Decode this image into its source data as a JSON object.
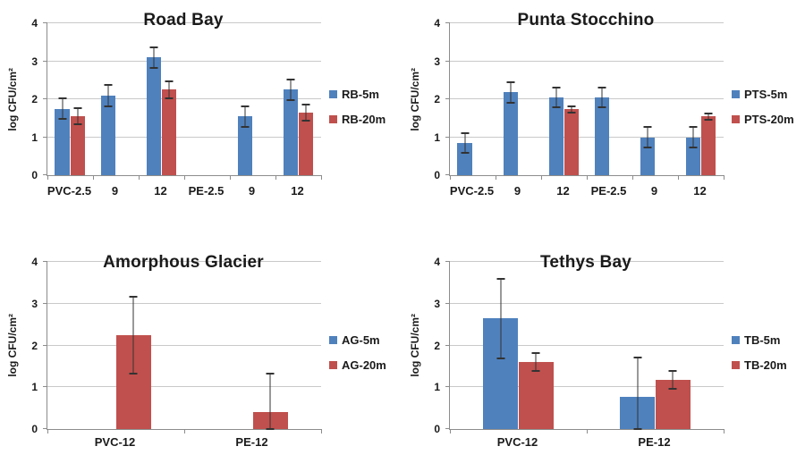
{
  "colors": {
    "series_5m_blue": "#4F81BD",
    "series_20m_red": "#C0504D",
    "gridline": "#C9C9C9",
    "axis": "#8C8C8C",
    "error_bar": "#333333",
    "text": "#1A1A1A",
    "background": "#FFFFFF"
  },
  "chart_data": [
    {
      "type": "bar",
      "title": "Road Bay",
      "ylabel": "log CFU/cm²",
      "xlabel": "",
      "ylim": [
        0,
        4
      ],
      "yticks": [
        0,
        1,
        2,
        3,
        4
      ],
      "grid": true,
      "legend_position": "right",
      "categories": [
        "PVC-2.5",
        "9",
        "12",
        "PE-2.5",
        "9",
        "12"
      ],
      "series": [
        {
          "name": "RB-5m",
          "color": "#4F81BD",
          "values": [
            1.75,
            2.1,
            3.1,
            null,
            1.55,
            2.25
          ],
          "errors": [
            0.27,
            0.28,
            0.27,
            null,
            0.27,
            0.27
          ]
        },
        {
          "name": "RB-20m",
          "color": "#C0504D",
          "values": [
            1.55,
            null,
            2.25,
            null,
            null,
            1.65
          ],
          "errors": [
            0.21,
            null,
            0.22,
            null,
            null,
            0.21
          ]
        }
      ]
    },
    {
      "type": "bar",
      "title": "Punta Stocchino",
      "ylabel": "log CFU/cm²",
      "xlabel": "",
      "ylim": [
        0,
        4
      ],
      "yticks": [
        0,
        1,
        2,
        3,
        4
      ],
      "grid": true,
      "legend_position": "right",
      "categories": [
        "PVC-2.5",
        "9",
        "12",
        "PE-2.5",
        "9",
        "12"
      ],
      "series": [
        {
          "name": "PTS-5m",
          "color": "#4F81BD",
          "values": [
            0.85,
            2.18,
            2.05,
            2.05,
            1.0,
            1.0
          ],
          "errors": [
            0.26,
            0.27,
            0.26,
            0.26,
            0.26,
            0.27
          ]
        },
        {
          "name": "PTS-20m",
          "color": "#C0504D",
          "values": [
            null,
            null,
            1.73,
            null,
            null,
            1.55
          ],
          "errors": [
            null,
            null,
            0.08,
            null,
            null,
            0.08
          ]
        }
      ]
    },
    {
      "type": "bar",
      "title": "Amorphous Glacier",
      "ylabel": "log CFU/cm²",
      "xlabel": "",
      "ylim": [
        0,
        4
      ],
      "yticks": [
        0,
        1,
        2,
        3,
        4
      ],
      "grid": true,
      "legend_position": "right",
      "categories": [
        "PVC-12",
        "PE-12"
      ],
      "series": [
        {
          "name": "AG-5m",
          "color": "#4F81BD",
          "values": [
            null,
            null
          ],
          "errors": [
            null,
            null
          ]
        },
        {
          "name": "AG-20m",
          "color": "#C0504D",
          "values": [
            2.25,
            0.4
          ],
          "errors": [
            0.92,
            0.93
          ]
        }
      ]
    },
    {
      "type": "bar",
      "title": "Tethys Bay",
      "ylabel": "log CFU/cm²",
      "xlabel": "",
      "ylim": [
        0,
        4
      ],
      "yticks": [
        0,
        1,
        2,
        3,
        4
      ],
      "grid": true,
      "legend_position": "right",
      "categories": [
        "PVC-12",
        "PE-12"
      ],
      "series": [
        {
          "name": "TB-5m",
          "color": "#4F81BD",
          "values": [
            2.65,
            0.78
          ],
          "errors": [
            0.95,
            0.93
          ]
        },
        {
          "name": "TB-20m",
          "color": "#C0504D",
          "values": [
            1.6,
            1.18
          ],
          "errors": [
            0.21,
            0.21
          ]
        }
      ]
    }
  ]
}
